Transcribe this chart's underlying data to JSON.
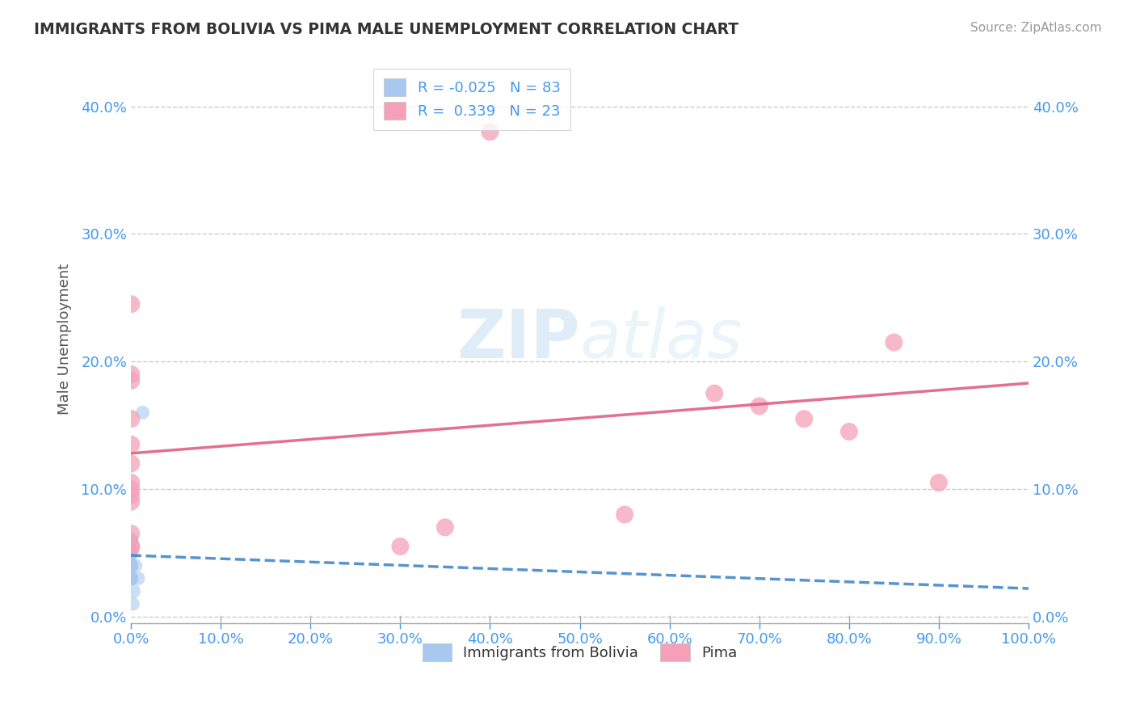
{
  "title": "IMMIGRANTS FROM BOLIVIA VS PIMA MALE UNEMPLOYMENT CORRELATION CHART",
  "source": "Source: ZipAtlas.com",
  "ylabel_label": "Male Unemployment",
  "legend_entries": [
    "Immigrants from Bolivia",
    "Pima"
  ],
  "blue_R": -0.025,
  "blue_N": 83,
  "pink_R": 0.339,
  "pink_N": 23,
  "blue_color": "#a8c8f0",
  "pink_color": "#f5a0b8",
  "blue_line_color": "#4488cc",
  "pink_line_color": "#e06080",
  "blue_scatter_x": [
    0.0002,
    0.0003,
    0.0002,
    0.0003,
    0.0002,
    0.0003,
    0.0002,
    0.0003,
    0.0002,
    0.0003,
    0.0002,
    0.0003,
    0.0002,
    0.0003,
    0.0002,
    0.0003,
    0.0002,
    0.0003,
    0.0002,
    0.0003,
    0.0002,
    0.0003,
    0.0002,
    0.0003,
    0.0002,
    0.0003,
    0.0002,
    0.0003,
    0.0002,
    0.0003,
    0.0002,
    0.0003,
    0.0002,
    0.0003,
    0.0002,
    0.0003,
    0.0002,
    0.0003,
    0.0002,
    0.0003,
    0.0002,
    0.0003,
    0.0002,
    0.0003,
    0.0002,
    0.0003,
    0.0002,
    0.0003,
    0.0002,
    0.0003,
    0.0002,
    0.0003,
    0.0002,
    0.0003,
    0.0002,
    0.0003,
    0.0002,
    0.0003,
    0.0002,
    0.0003,
    0.0002,
    0.0003,
    0.0002,
    0.0003,
    0.0002,
    0.0003,
    0.0002,
    0.0003,
    0.0002,
    0.0003,
    0.0002,
    0.0003,
    0.0002,
    0.0003,
    0.0002,
    0.0003,
    0.0002,
    0.001,
    0.005,
    0.008,
    0.013,
    0.003,
    0.002
  ],
  "blue_scatter_y": [
    0.04,
    0.05,
    0.03,
    0.06,
    0.04,
    0.05,
    0.03,
    0.06,
    0.04,
    0.05,
    0.03,
    0.04,
    0.05,
    0.06,
    0.03,
    0.04,
    0.05,
    0.03,
    0.06,
    0.04,
    0.05,
    0.03,
    0.04,
    0.06,
    0.05,
    0.03,
    0.04,
    0.05,
    0.03,
    0.04,
    0.06,
    0.05,
    0.03,
    0.04,
    0.05,
    0.03,
    0.06,
    0.04,
    0.05,
    0.03,
    0.04,
    0.05,
    0.06,
    0.03,
    0.04,
    0.05,
    0.03,
    0.06,
    0.04,
    0.05,
    0.03,
    0.04,
    0.05,
    0.06,
    0.03,
    0.04,
    0.05,
    0.03,
    0.04,
    0.06,
    0.05,
    0.03,
    0.04,
    0.05,
    0.03,
    0.06,
    0.04,
    0.05,
    0.03,
    0.04,
    0.05,
    0.06,
    0.03,
    0.04,
    0.05,
    0.03,
    0.04,
    0.05,
    0.04,
    0.03,
    0.16,
    0.02,
    0.01
  ],
  "pink_scatter_x": [
    0.0002,
    0.0002,
    0.0002,
    0.0003,
    0.0002,
    0.0002,
    0.0002,
    0.0002,
    0.0002,
    0.0002,
    0.0002,
    0.0002,
    0.0003,
    0.3,
    0.35,
    0.4,
    0.55,
    0.65,
    0.7,
    0.75,
    0.8,
    0.85,
    0.9
  ],
  "pink_scatter_y": [
    0.245,
    0.19,
    0.185,
    0.155,
    0.135,
    0.12,
    0.105,
    0.1,
    0.095,
    0.09,
    0.065,
    0.055,
    0.055,
    0.055,
    0.07,
    0.38,
    0.08,
    0.175,
    0.165,
    0.155,
    0.145,
    0.215,
    0.105
  ],
  "blue_line_x0": 0.0,
  "blue_line_y0": 0.048,
  "blue_line_x1": 1.0,
  "blue_line_y1": 0.022,
  "pink_line_x0": 0.0,
  "pink_line_y0": 0.128,
  "pink_line_x1": 1.0,
  "pink_line_y1": 0.183,
  "xlim": [
    0.0,
    1.0
  ],
  "ylim": [
    -0.005,
    0.44
  ],
  "xticks": [
    0.0,
    0.1,
    0.2,
    0.3,
    0.4,
    0.5,
    0.6,
    0.7,
    0.8,
    0.9,
    1.0
  ],
  "yticks": [
    0.0,
    0.1,
    0.2,
    0.3,
    0.4
  ],
  "background_color": "#ffffff",
  "watermark_zip": "ZIP",
  "watermark_atlas": "atlas",
  "grid_color": "#cccccc",
  "tick_color": "#4499ee",
  "title_color": "#333333",
  "ylabel_color": "#555555"
}
